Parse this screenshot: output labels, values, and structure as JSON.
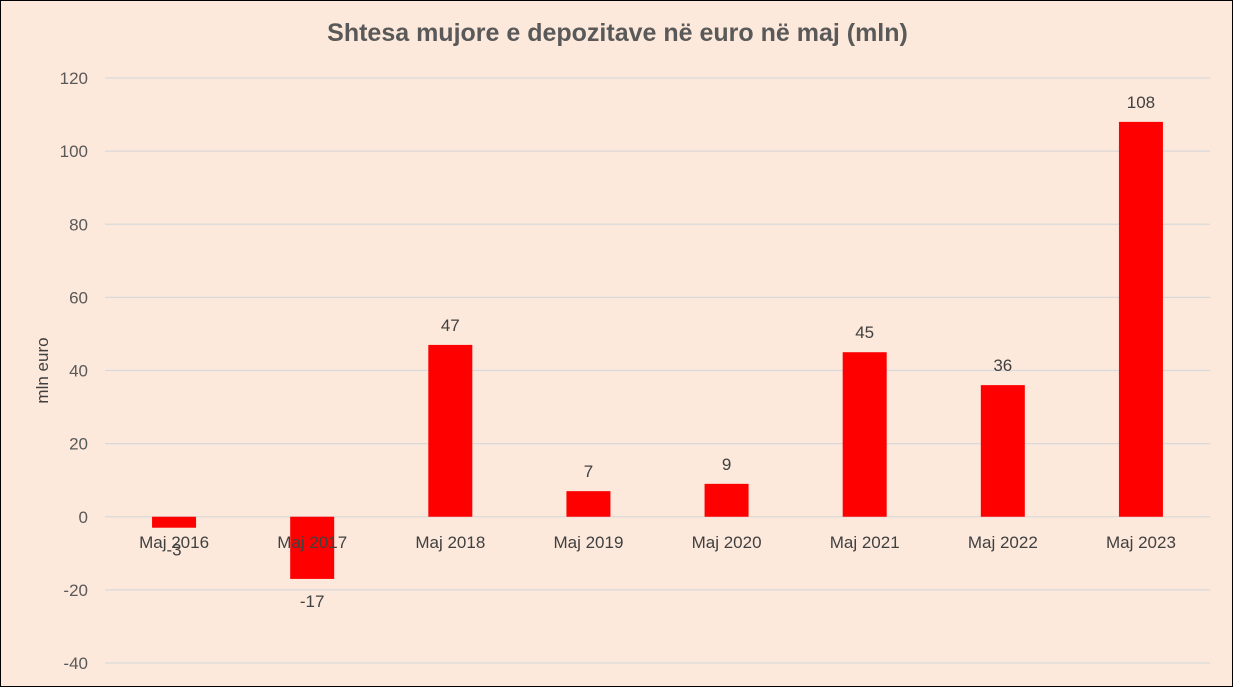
{
  "chart_data": {
    "type": "bar",
    "title": "Shtesa mujore e depozitave në euro në maj (mln)",
    "xlabel": "",
    "ylabel": "mln euro",
    "categories": [
      "Maj 2016",
      "Maj 2017",
      "Maj 2018",
      "Maj 2019",
      "Maj 2020",
      "Maj 2021",
      "Maj 2022",
      "Maj 2023"
    ],
    "values": [
      -3,
      -17,
      47,
      7,
      9,
      45,
      36,
      108
    ],
    "ylim": [
      -40,
      120
    ],
    "yticks": [
      -40,
      -20,
      0,
      20,
      40,
      60,
      80,
      100,
      120
    ],
    "grid": true,
    "legend": "none",
    "colors": {
      "bar": "#ff0000",
      "grid": "#d9d9d9",
      "background": "#fde9dc"
    }
  }
}
